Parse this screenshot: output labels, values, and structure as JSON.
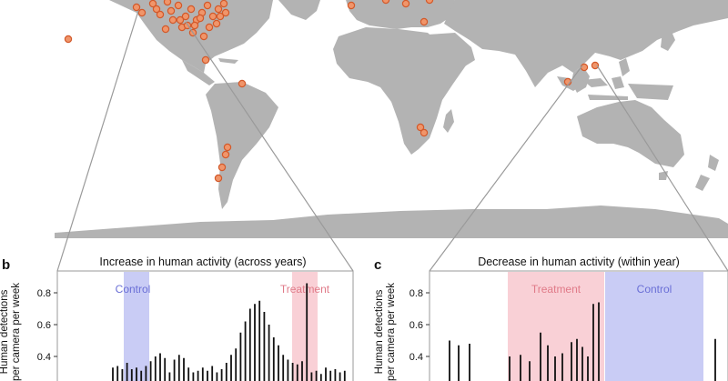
{
  "colors": {
    "land": "#b3b3b3",
    "site_fill": "#f0956a",
    "site_stroke": "#d2592a",
    "connector": "#9a9a9a",
    "control_band": "#c9ccf5",
    "control_text": "#6a6fd6",
    "treatment_band": "#f9d0d6",
    "treatment_text": "#e07a88",
    "bar": "#111111"
  },
  "map": {
    "description_icon": "world-map",
    "site_marker_icon": "orange-dot"
  },
  "panels": [
    {
      "letter": "b",
      "title": "Increase in human activity (across years)",
      "ylabel_line1": "Human detections",
      "ylabel_line2": "per camera per week",
      "control_label": "Control",
      "treatment_label": "Treatment"
    },
    {
      "letter": "c",
      "title": "Decrease in human activity (within year)",
      "ylabel_line1": "Human detections",
      "ylabel_line2": "per camera per week",
      "control_label": "Control",
      "treatment_label": "Treatment"
    }
  ],
  "chart_data": [
    {
      "type": "bar",
      "panel": "b",
      "title": "Increase in human activity (across years)",
      "ylabel": "Human detections per camera per week",
      "y_ticks": [
        "0.4",
        "0.6",
        "0.8"
      ],
      "ylim": [
        0.25,
        0.9
      ],
      "x": [
        1,
        2,
        3,
        4,
        5,
        6,
        7,
        8,
        9,
        10,
        11,
        12,
        13,
        14,
        15,
        16,
        17,
        18,
        19,
        20,
        21,
        22,
        23,
        24,
        25,
        26,
        27,
        28,
        29,
        30,
        31,
        32,
        33,
        34,
        35,
        36,
        37,
        38,
        39,
        40,
        41,
        42,
        43,
        44,
        45,
        46,
        47,
        48,
        49,
        50
      ],
      "xlim": [
        0,
        51
      ],
      "values": [
        0.33,
        0.34,
        0.32,
        0.36,
        0.32,
        0.33,
        0.31,
        0.34,
        0.37,
        0.4,
        0.42,
        0.39,
        0.3,
        0.38,
        0.41,
        0.39,
        0.33,
        0.3,
        0.31,
        0.33,
        0.31,
        0.34,
        0.3,
        0.32,
        0.36,
        0.41,
        0.45,
        0.55,
        0.62,
        0.7,
        0.73,
        0.75,
        0.68,
        0.6,
        0.52,
        0.47,
        0.41,
        0.38,
        0.36,
        0.35,
        0.37,
        0.86,
        0.3,
        0.31,
        0.29,
        0.33,
        0.31,
        0.32,
        0.3,
        0.31
      ],
      "control_range": [
        0,
        1
      ],
      "treatment_range": [
        0,
        1
      ],
      "grid": false
    },
    {
      "type": "bar",
      "panel": "c",
      "title": "Decrease in human activity (within year)",
      "ylabel": "Human detections per camera per week",
      "y_ticks": [
        "0.4",
        "0.6",
        "0.8"
      ],
      "ylim": [
        0.25,
        0.9
      ],
      "values": [
        0.5,
        0.47,
        0.48,
        0.4,
        0.41,
        0.37,
        0.55,
        0.47,
        0.4,
        0.42,
        0.49,
        0.51,
        0.46,
        0.4,
        0.73,
        0.74,
        0.51
      ],
      "treatment_range": [
        0,
        1
      ],
      "control_range": [
        0,
        1
      ],
      "grid": false
    }
  ]
}
